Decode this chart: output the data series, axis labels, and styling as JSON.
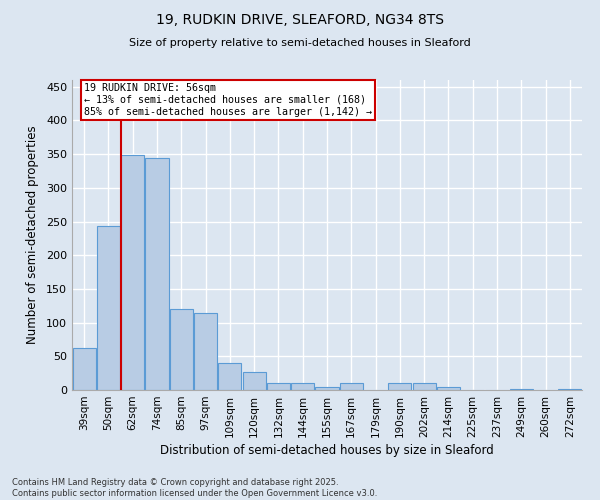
{
  "title1": "19, RUDKIN DRIVE, SLEAFORD, NG34 8TS",
  "title2": "Size of property relative to semi-detached houses in Sleaford",
  "xlabel": "Distribution of semi-detached houses by size in Sleaford",
  "ylabel": "Number of semi-detached properties",
  "categories": [
    "39sqm",
    "50sqm",
    "62sqm",
    "74sqm",
    "85sqm",
    "97sqm",
    "109sqm",
    "120sqm",
    "132sqm",
    "144sqm",
    "155sqm",
    "167sqm",
    "179sqm",
    "190sqm",
    "202sqm",
    "214sqm",
    "225sqm",
    "237sqm",
    "249sqm",
    "260sqm",
    "272sqm"
  ],
  "values": [
    62,
    243,
    348,
    345,
    120,
    115,
    40,
    27,
    10,
    10,
    5,
    10,
    0,
    10,
    10,
    5,
    0,
    0,
    2,
    0,
    1
  ],
  "bar_color": "#b8cce4",
  "bar_edge_color": "#5b9bd5",
  "background_color": "#dce6f1",
  "grid_color": "#ffffff",
  "annotation_title": "19 RUDKIN DRIVE: 56sqm",
  "annotation_line1": "← 13% of semi-detached houses are smaller (168)",
  "annotation_line2": "85% of semi-detached houses are larger (1,142) →",
  "annotation_box_color": "#ffffff",
  "annotation_box_edge_color": "#cc0000",
  "property_line_color": "#cc0000",
  "ylim": [
    0,
    460
  ],
  "yticks": [
    0,
    50,
    100,
    150,
    200,
    250,
    300,
    350,
    400,
    450
  ],
  "footnote1": "Contains HM Land Registry data © Crown copyright and database right 2025.",
  "footnote2": "Contains public sector information licensed under the Open Government Licence v3.0."
}
